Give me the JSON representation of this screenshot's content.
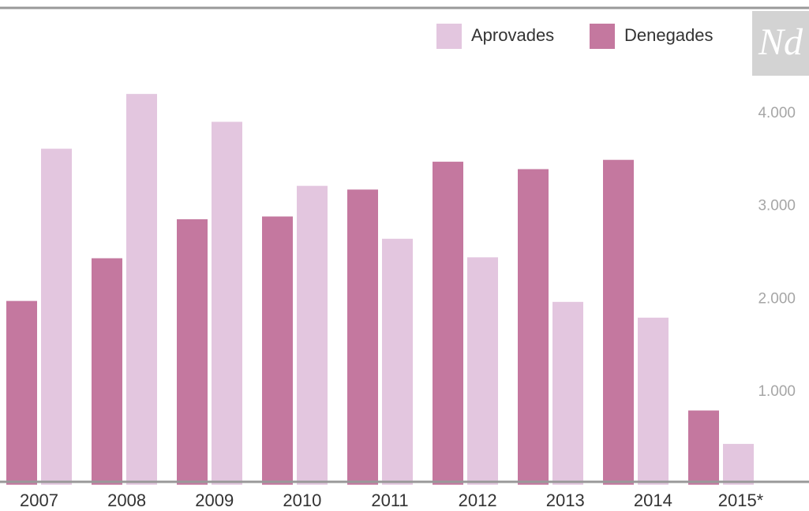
{
  "logo": "Nd",
  "chart_data": {
    "type": "bar",
    "categories": [
      "2007",
      "2008",
      "2009",
      "2010",
      "2011",
      "2012",
      "2013",
      "2014",
      "2015*"
    ],
    "series": [
      {
        "name": "Denegades",
        "color": "#c4789f",
        "values": [
          1980,
          2440,
          2860,
          2890,
          3180,
          3480,
          3400,
          3500,
          800
        ]
      },
      {
        "name": "Aprovades",
        "color": "#e3c6df",
        "values": [
          3620,
          4210,
          3910,
          3220,
          2650,
          2450,
          1970,
          1800,
          440
        ]
      }
    ],
    "ylim": [
      0,
      4500
    ],
    "yticks": [
      {
        "value": 1000,
        "label": "1.000"
      },
      {
        "value": 2000,
        "label": "2.000"
      },
      {
        "value": 3000,
        "label": "3.000"
      },
      {
        "value": 4000,
        "label": "4.000"
      }
    ],
    "legend": "top-right"
  }
}
